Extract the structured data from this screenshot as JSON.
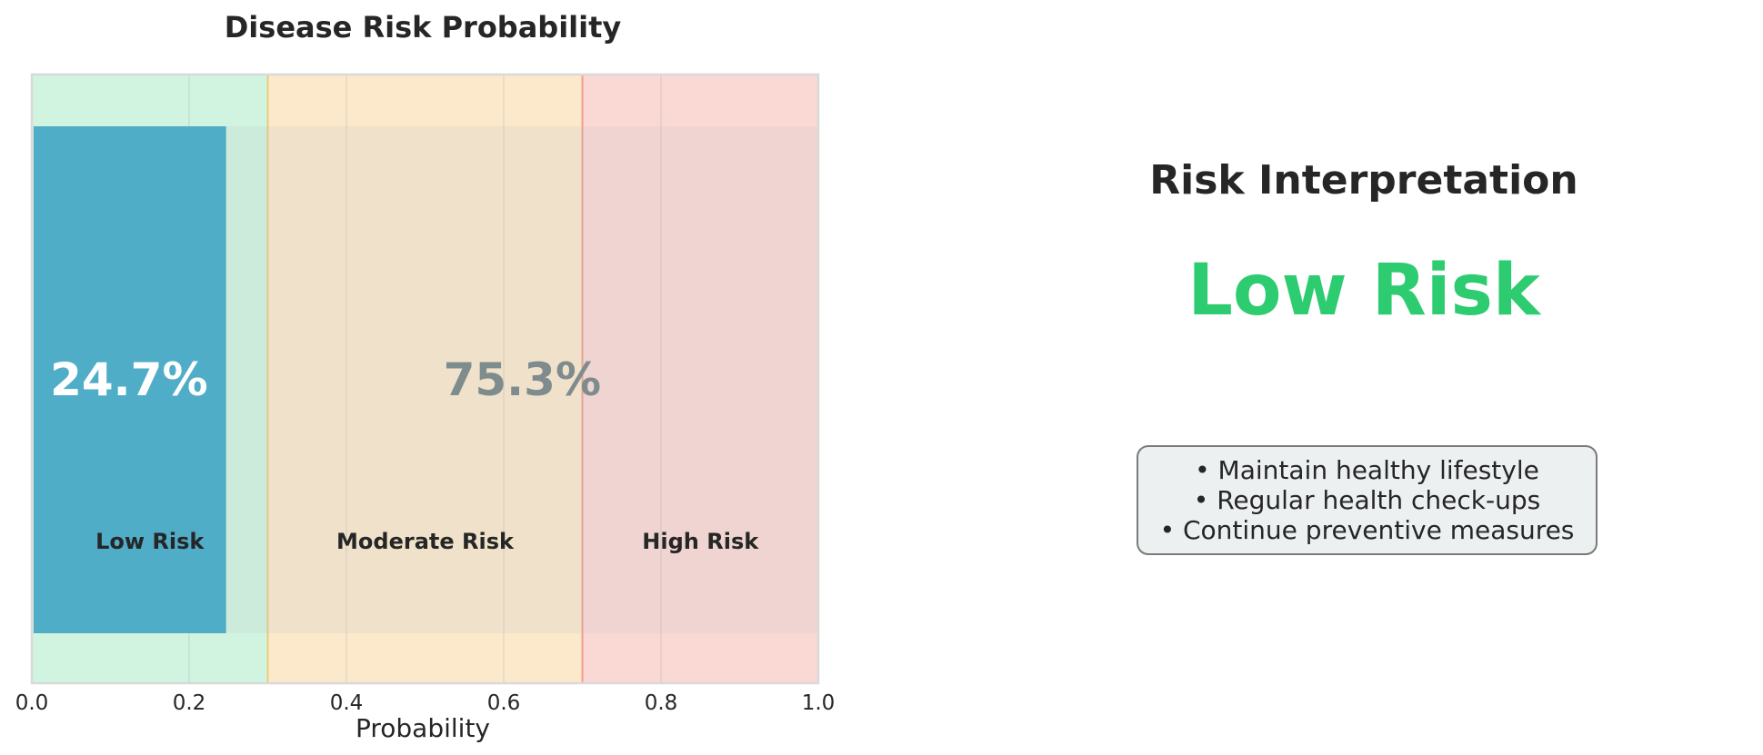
{
  "chart_data": {
    "type": "bar",
    "orientation": "horizontal",
    "title": "Disease Risk Probability",
    "xlabel": "Probability",
    "ylabel": "",
    "xlim": [
      0.0,
      1.0
    ],
    "x_ticks": [
      "0.0",
      "0.2",
      "0.4",
      "0.6",
      "0.8",
      "1.0"
    ],
    "x_tick_values": [
      0.0,
      0.2,
      0.4,
      0.6,
      0.8,
      1.0
    ],
    "grid": true,
    "value": 0.247,
    "value_label": "24.7%",
    "remainder_label": "75.3%",
    "bar_color": "#45a7c7",
    "zones": [
      {
        "label": "Low Risk",
        "from": 0.0,
        "to": 0.3,
        "color": "#2ecc71"
      },
      {
        "label": "Moderate Risk",
        "from": 0.3,
        "to": 0.7,
        "color": "#f39c12"
      },
      {
        "label": "High Risk",
        "from": 0.7,
        "to": 1.0,
        "color": "#e74c3c"
      }
    ],
    "thresholds": [
      0.3,
      0.7
    ]
  },
  "interpretation": {
    "title": "Risk Interpretation",
    "level": "Low Risk",
    "level_color": "#2ecc71",
    "recommendations": [
      "• Maintain healthy lifestyle",
      "• Regular health check-ups",
      "• Continue preventive measures"
    ]
  }
}
